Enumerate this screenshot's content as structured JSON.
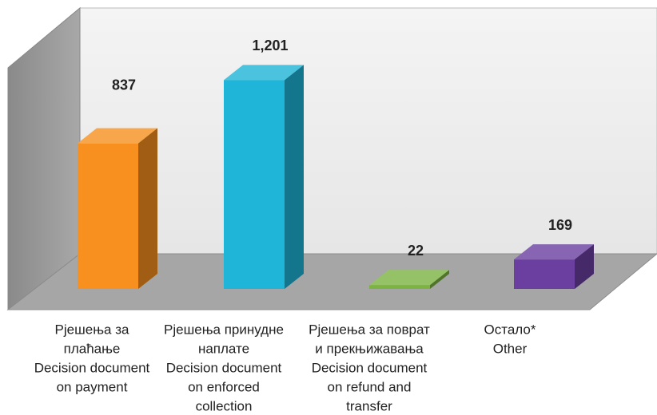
{
  "chart_data": {
    "type": "bar3d",
    "categories": [
      [
        "Рјешења за",
        "плаћање",
        "Decision document",
        "on payment"
      ],
      [
        "Рјешења принудне",
        "наплате",
        "Decision document",
        "on enforced",
        "collection"
      ],
      [
        "Рјешења за поврат",
        "и прекњижавања",
        "Decision document",
        "on refund and",
        "transfer"
      ],
      [
        "Остало*",
        "Other"
      ]
    ],
    "values": [
      837,
      1201,
      22,
      169
    ],
    "value_labels": [
      "837",
      "1,201",
      "22",
      "169"
    ],
    "colors": [
      "#f7901e",
      "#1fb5d8",
      "#7cb342",
      "#6a3fa0"
    ],
    "ylim": [
      0,
      1400
    ]
  }
}
